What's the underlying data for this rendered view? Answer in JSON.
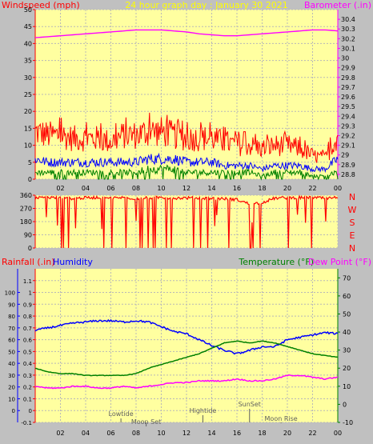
{
  "colors": {
    "background": "#c0c0c0",
    "plot_bg": "#ffffa0",
    "grid": "#b8b8b8",
    "windspeed": "#ff0000",
    "gust": "#0000ff",
    "average": "#008000",
    "barometer": "#ff00ff",
    "direction": "#ff0000",
    "rainfall": "#ff0000",
    "humidity": "#0000ff",
    "temperature": "#008000",
    "dewpoint": "#ff00ff",
    "title": "#ffff00",
    "compass": "#ff0000",
    "event": "#606060"
  },
  "x_ticks": [
    "02",
    "04",
    "06",
    "08",
    "10",
    "12",
    "14",
    "16",
    "18",
    "20",
    "22",
    "00"
  ],
  "chart_data": [
    {
      "id": "wind",
      "type": "line",
      "title": "24 hour graph day : January 30 2021",
      "left_axis_label": "Windspeed (mph)",
      "right_axis_label": "Barometer (.in)",
      "x": [
        "00:00",
        "01:00",
        "02:00",
        "03:00",
        "04:00",
        "05:00",
        "06:00",
        "07:00",
        "08:00",
        "09:00",
        "10:00",
        "11:00",
        "12:00",
        "13:00",
        "14:00",
        "15:00",
        "16:00",
        "17:00",
        "18:00",
        "19:00",
        "20:00",
        "21:00",
        "22:00",
        "23:00",
        "24:00"
      ],
      "ylim": [
        0,
        50
      ],
      "y_ticks": [
        0,
        5,
        10,
        15,
        20,
        25,
        30,
        35,
        40,
        45,
        50
      ],
      "y2lim": [
        28.75,
        30.5
      ],
      "y2_ticks": [
        "28.8",
        "28.9",
        "29",
        "29.1",
        "29.2",
        "29.3",
        "29.4",
        "29.5",
        "29.6",
        "29.7",
        "29.8",
        "29.9",
        "30",
        "30.1",
        "30.2",
        "30.3",
        "30.4"
      ],
      "grid": true,
      "series": [
        {
          "axis": "left",
          "values": [
            14,
            13,
            13,
            12,
            12,
            12,
            11,
            13,
            13,
            14,
            14,
            13,
            12,
            12,
            12,
            11,
            10,
            10,
            9,
            10,
            10,
            9,
            7,
            6,
            13
          ]
        },
        {
          "axis": "left",
          "values": [
            6,
            5,
            5,
            5,
            5,
            5,
            5,
            5,
            5,
            6,
            6,
            6,
            5,
            5,
            5,
            4,
            4,
            4,
            3,
            4,
            4,
            4,
            3,
            3,
            6
          ]
        },
        {
          "axis": "left",
          "values": [
            2,
            2,
            2,
            2,
            2,
            2,
            2,
            2,
            2,
            3,
            3,
            3,
            2,
            2,
            2,
            2,
            2,
            2,
            1,
            2,
            2,
            2,
            1,
            1,
            2
          ]
        },
        {
          "axis": "right",
          "values": [
            30.21,
            30.22,
            30.23,
            30.24,
            30.25,
            30.26,
            30.27,
            30.28,
            30.29,
            30.29,
            30.29,
            30.28,
            30.27,
            30.25,
            30.24,
            30.23,
            30.23,
            30.24,
            30.25,
            30.26,
            30.27,
            30.28,
            30.29,
            30.29,
            30.28
          ]
        }
      ]
    },
    {
      "id": "direction",
      "type": "line",
      "x": [
        "00:00",
        "01:00",
        "02:00",
        "03:00",
        "04:00",
        "05:00",
        "06:00",
        "07:00",
        "08:00",
        "09:00",
        "10:00",
        "11:00",
        "12:00",
        "13:00",
        "14:00",
        "15:00",
        "16:00",
        "17:00",
        "18:00",
        "19:00",
        "20:00",
        "21:00",
        "22:00",
        "23:00",
        "24:00"
      ],
      "ylim": [
        0,
        360
      ],
      "y_ticks": [
        0,
        90,
        180,
        270,
        360
      ],
      "compass_labels": [
        "N",
        "W",
        "S",
        "E",
        "N"
      ],
      "grid": true,
      "series": [
        {
          "values": [
            340,
            345,
            340,
            338,
            342,
            345,
            340,
            344,
            338,
            342,
            345,
            340,
            342,
            340,
            338,
            336,
            330,
            300,
            310,
            340,
            342,
            345,
            343,
            340,
            345
          ]
        }
      ]
    },
    {
      "id": "temp",
      "type": "line",
      "left_axis_label": "Rainfall (.in)",
      "left2_axis_label": "Humidity",
      "right_axis_label": "Temperature (°F)",
      "right2_axis_label": "Dew Point (°F)",
      "x": [
        "00:00",
        "01:00",
        "02:00",
        "03:00",
        "04:00",
        "05:00",
        "06:00",
        "07:00",
        "08:00",
        "09:00",
        "10:00",
        "11:00",
        "12:00",
        "13:00",
        "14:00",
        "15:00",
        "16:00",
        "17:00",
        "18:00",
        "19:00",
        "20:00",
        "21:00",
        "22:00",
        "23:00",
        "24:00"
      ],
      "rain_lim": [
        -0.1,
        1.2
      ],
      "rain_ticks": [
        "-0.1",
        "0",
        "0.1",
        "0.2",
        "0.3",
        "0.4",
        "0.5",
        "0.6",
        "0.7",
        "0.8",
        "0.9",
        "1",
        "1.1"
      ],
      "humidity_lim": [
        0,
        100
      ],
      "humidity_ticks": [
        0,
        10,
        20,
        30,
        40,
        50,
        60,
        70,
        80,
        90,
        100
      ],
      "ylim": [
        -10,
        75
      ],
      "y_ticks": [
        -10,
        0,
        10,
        20,
        30,
        40,
        50,
        60,
        70
      ],
      "grid": true,
      "series": [
        {
          "axis": "humidity",
          "values": [
            68,
            70,
            72,
            74,
            75,
            76,
            76,
            75,
            76,
            75,
            71,
            67,
            65,
            60,
            55,
            51,
            48,
            51,
            54,
            54,
            60,
            62,
            64,
            66,
            65
          ]
        },
        {
          "axis": "temperature",
          "values": [
            20,
            18,
            17,
            17,
            16,
            16,
            16,
            16,
            17,
            20,
            22,
            24,
            26,
            28,
            31,
            34,
            35,
            34,
            35,
            34,
            32,
            30,
            28,
            27,
            26
          ]
        },
        {
          "axis": "temperature",
          "values": [
            10,
            9,
            9,
            10,
            10,
            9,
            9,
            10,
            9,
            10,
            11,
            12,
            12,
            13,
            13,
            13,
            14,
            13,
            13,
            14,
            16,
            16,
            15,
            14,
            15
          ]
        }
      ],
      "events": [
        {
          "label": "Lowtide",
          "hour": 6.8
        },
        {
          "label": "Moon Set",
          "hour": 8.8
        },
        {
          "label": "Hightide",
          "hour": 13.3
        },
        {
          "label": "SunSet",
          "hour": 17.0
        },
        {
          "label": "Moon Rise",
          "hour": 19.5
        }
      ]
    }
  ]
}
